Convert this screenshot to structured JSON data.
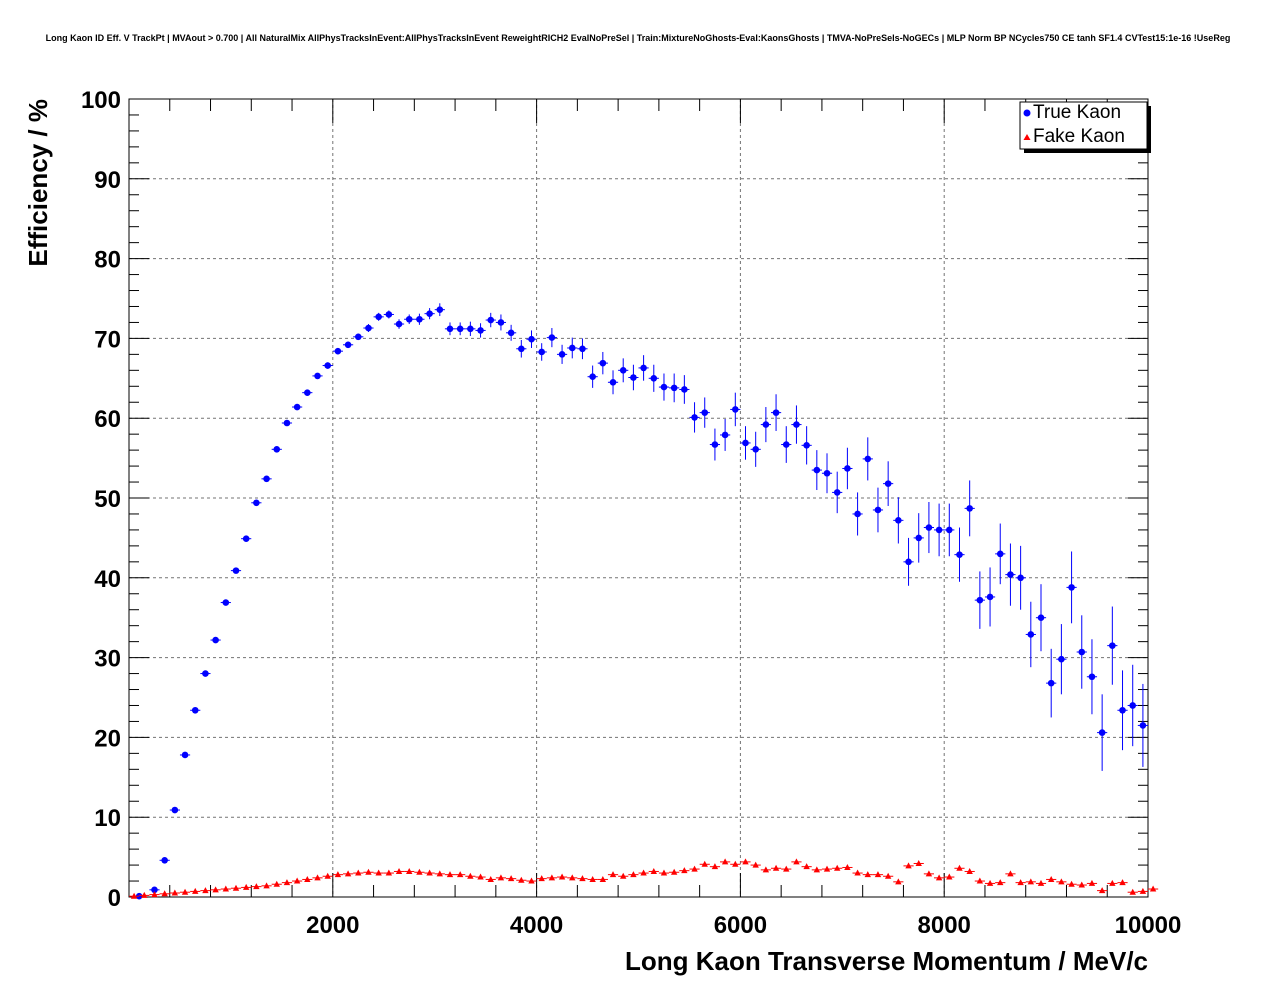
{
  "chart_data": {
    "type": "scatter",
    "title": "Long Kaon ID Eff. V TrackPt | MVAout > 0.700 | All NaturalMix AllPhysTracksInEvent:AllPhysTracksInEvent ReweightRICH2 EvalNoPreSel | Train:MixtureNoGhosts-Eval:KaonsGhosts | TMVA-NoPreSels-NoGECs | MLP Norm BP NCycles750 CE tanh SF1.4 CVTest15:1e-16 !UseReg",
    "xlabel": "Long Kaon Transverse Momentum / MeV/c",
    "ylabel": "Efficiency / %",
    "xlim": [
      0,
      10000
    ],
    "ylim": [
      0,
      100
    ],
    "xticks": [
      "2000",
      "4000",
      "6000",
      "8000",
      "10000"
    ],
    "yticks": [
      "0",
      "10",
      "20",
      "30",
      "40",
      "50",
      "60",
      "70",
      "80",
      "90",
      "100"
    ],
    "grid": true,
    "legend_position": "top-right",
    "series": [
      {
        "name": "True Kaon",
        "color": "#0000ff",
        "marker": "circle",
        "x": [
          100,
          250,
          350,
          450,
          550,
          650,
          750,
          850,
          950,
          1050,
          1150,
          1250,
          1350,
          1450,
          1550,
          1650,
          1750,
          1850,
          1950,
          2050,
          2150,
          2250,
          2350,
          2450,
          2550,
          2650,
          2750,
          2850,
          2950,
          3050,
          3150,
          3250,
          3350,
          3450,
          3550,
          3650,
          3750,
          3850,
          3950,
          4050,
          4150,
          4250,
          4350,
          4450,
          4550,
          4650,
          4750,
          4850,
          4950,
          5050,
          5150,
          5250,
          5350,
          5450,
          5550,
          5650,
          5750,
          5850,
          5950,
          6050,
          6150,
          6250,
          6350,
          6450,
          6550,
          6650,
          6750,
          6850,
          6950,
          7050,
          7150,
          7250,
          7350,
          7450,
          7550,
          7650,
          7750,
          7850,
          7950,
          8050,
          8150,
          8250,
          8350,
          8450,
          8550,
          8650,
          8750,
          8850,
          8950,
          9050,
          9150,
          9250,
          9350,
          9450,
          9550,
          9650,
          9750,
          9850,
          9950
        ],
        "y": [
          0.1,
          0.9,
          4.6,
          10.9,
          17.8,
          23.4,
          28.0,
          32.2,
          36.9,
          40.9,
          44.9,
          49.4,
          52.4,
          56.1,
          59.4,
          61.4,
          63.2,
          65.3,
          66.6,
          68.4,
          69.2,
          70.2,
          71.3,
          72.7,
          73.0,
          71.8,
          72.4,
          72.4,
          73.1,
          73.6,
          71.2,
          71.2,
          71.2,
          71.0,
          72.3,
          72.0,
          70.7,
          68.7,
          69.9,
          68.3,
          70.1,
          68.0,
          68.8,
          68.7,
          65.2,
          66.9,
          64.5,
          66.0,
          65.1,
          66.3,
          65.0,
          63.9,
          63.8,
          63.6,
          60.1,
          60.7,
          56.7,
          57.9,
          61.1,
          56.9,
          56.1,
          59.2,
          60.7,
          56.7,
          59.2,
          56.6,
          53.5,
          53.1,
          50.7,
          53.7,
          48.0,
          54.9,
          48.5,
          51.8,
          47.2,
          42.0,
          45.0,
          46.3,
          46.0,
          46.0,
          42.9,
          48.7,
          37.2,
          37.6,
          43.0,
          40.4,
          40.0,
          32.9,
          35.0,
          26.8,
          29.8,
          38.8,
          30.7,
          27.6,
          20.6,
          31.5,
          23.4,
          24.0,
          21.5
        ],
        "yerr": [
          0.1,
          0.2,
          0.3,
          0.3,
          0.3,
          0.3,
          0.3,
          0.3,
          0.3,
          0.3,
          0.3,
          0.3,
          0.3,
          0.3,
          0.3,
          0.3,
          0.3,
          0.3,
          0.4,
          0.4,
          0.4,
          0.4,
          0.5,
          0.5,
          0.5,
          0.6,
          0.6,
          0.7,
          0.7,
          0.8,
          0.8,
          0.8,
          0.9,
          0.9,
          0.9,
          1.0,
          1.0,
          1.1,
          1.1,
          1.1,
          1.2,
          1.2,
          1.3,
          1.3,
          1.4,
          1.4,
          1.5,
          1.5,
          1.6,
          1.6,
          1.7,
          1.7,
          1.8,
          1.8,
          1.9,
          1.9,
          2.0,
          2.0,
          2.1,
          2.1,
          2.2,
          2.2,
          2.3,
          2.3,
          2.4,
          2.4,
          2.5,
          2.5,
          2.6,
          2.6,
          2.7,
          2.7,
          2.8,
          2.8,
          2.9,
          3.0,
          3.1,
          3.2,
          3.3,
          3.3,
          3.4,
          3.5,
          3.6,
          3.7,
          3.8,
          3.9,
          4.0,
          4.1,
          4.2,
          4.3,
          4.4,
          4.5,
          4.6,
          4.7,
          4.8,
          4.9,
          5.0,
          5.1,
          5.2
        ]
      },
      {
        "name": "Fake Kaon",
        "color": "#ff0000",
        "marker": "triangle",
        "x": [
          50,
          150,
          250,
          350,
          450,
          550,
          650,
          750,
          850,
          950,
          1050,
          1150,
          1250,
          1350,
          1450,
          1550,
          1650,
          1750,
          1850,
          1950,
          2050,
          2150,
          2250,
          2350,
          2450,
          2550,
          2650,
          2750,
          2850,
          2950,
          3050,
          3150,
          3250,
          3350,
          3450,
          3550,
          3650,
          3750,
          3850,
          3950,
          4050,
          4150,
          4250,
          4350,
          4450,
          4550,
          4650,
          4750,
          4850,
          4950,
          5050,
          5150,
          5250,
          5350,
          5450,
          5550,
          5650,
          5750,
          5850,
          5950,
          6050,
          6150,
          6250,
          6350,
          6450,
          6550,
          6650,
          6750,
          6850,
          6950,
          7050,
          7150,
          7250,
          7350,
          7450,
          7550,
          7650,
          7750,
          7850,
          7950,
          8050,
          8150,
          8250,
          8350,
          8450,
          8550,
          8650,
          8750,
          8850,
          8950,
          9050,
          9150,
          9250,
          9350,
          9450,
          9550,
          9650,
          9750,
          9850,
          9950,
          10050
        ],
        "y": [
          0.1,
          0.2,
          0.3,
          0.4,
          0.5,
          0.6,
          0.7,
          0.8,
          0.9,
          1.0,
          1.1,
          1.2,
          1.3,
          1.4,
          1.6,
          1.8,
          2.0,
          2.2,
          2.4,
          2.6,
          2.8,
          2.9,
          3.0,
          3.1,
          3.0,
          3.0,
          3.2,
          3.2,
          3.1,
          3.0,
          2.9,
          2.8,
          2.8,
          2.6,
          2.5,
          2.2,
          2.4,
          2.3,
          2.1,
          2.0,
          2.3,
          2.4,
          2.5,
          2.4,
          2.3,
          2.2,
          2.2,
          2.8,
          2.6,
          2.8,
          3.0,
          3.2,
          3.0,
          3.1,
          3.3,
          3.5,
          4.1,
          3.8,
          4.4,
          4.1,
          4.4,
          4.0,
          3.4,
          3.6,
          3.5,
          4.4,
          3.8,
          3.4,
          3.5,
          3.6,
          3.7,
          3.0,
          2.8,
          2.8,
          2.6,
          1.9,
          3.9,
          4.2,
          2.9,
          2.4,
          2.5,
          3.6,
          3.2,
          2.0,
          1.7,
          1.8,
          2.9,
          1.8,
          1.9,
          1.7,
          2.2,
          1.9,
          1.6,
          1.5,
          1.7,
          0.8,
          1.7,
          1.8,
          0.6,
          0.7,
          1.0
        ]
      }
    ]
  }
}
